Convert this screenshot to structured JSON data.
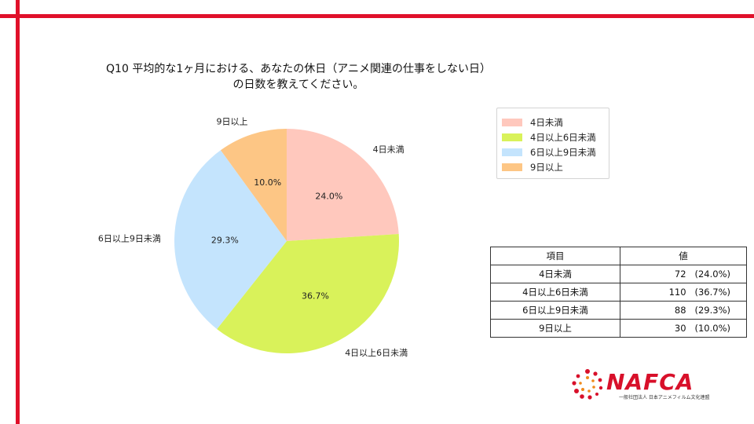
{
  "title": {
    "line1": "Q10 平均的な1ヶ月における、あなたの休日（アニメ関連の仕事をしない日）",
    "line2": "の日数を教えてください。"
  },
  "chart_data": {
    "type": "pie",
    "categories": [
      "4日未満",
      "4日以上6日未満",
      "6日以上9日未満",
      "9日以上"
    ],
    "values": [
      72,
      110,
      88,
      30
    ],
    "percent_labels": [
      "24.0%",
      "36.7%",
      "29.3%",
      "10.0%"
    ],
    "colors": [
      "#ffc8bd",
      "#d9f25a",
      "#c4e4fd",
      "#fdc685"
    ],
    "start_angle": "12 o'clock",
    "direction": "clockwise",
    "legend_position": "top-right"
  },
  "legend": {
    "items": [
      {
        "label": "4日未満",
        "color": "#ffc8bd"
      },
      {
        "label": "4日以上6日未満",
        "color": "#d9f25a"
      },
      {
        "label": "6日以上9日未満",
        "color": "#c4e4fd"
      },
      {
        "label": "9日以上",
        "color": "#fdc685"
      }
    ]
  },
  "table": {
    "headers": [
      "項目",
      "値"
    ],
    "rows": [
      {
        "item": "4日未満",
        "value": "72   (24.0%)"
      },
      {
        "item": "4日以上6日未満",
        "value": "110   (36.7%)"
      },
      {
        "item": "6日以上9日未満",
        "value": "88   (29.3%)"
      },
      {
        "item": "9日以上",
        "value": "30   (10.0%)"
      }
    ]
  },
  "logo": {
    "name": "NAFCA",
    "subtitle": "一般社団法人 日本アニメフィルム文化連盟",
    "color": "#d8102a"
  }
}
